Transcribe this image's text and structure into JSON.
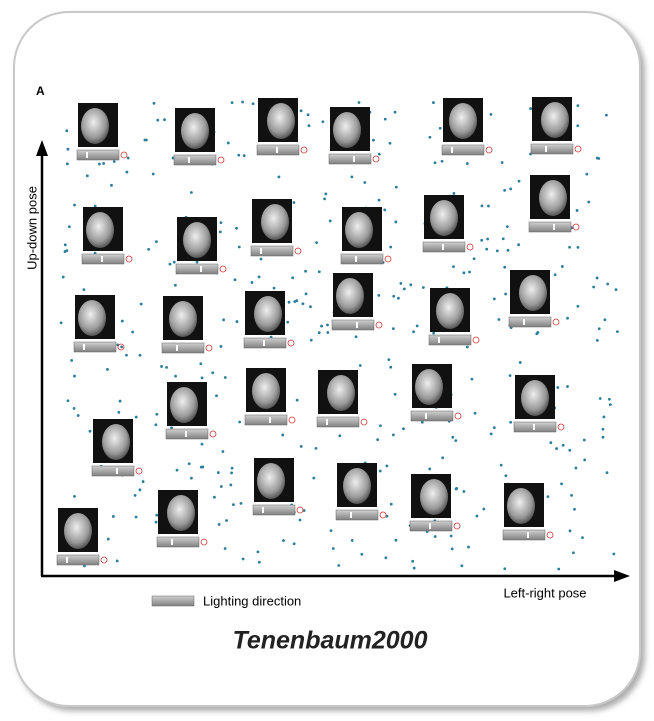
{
  "panel_label": "A",
  "y_axis_label": "Up-down pose",
  "x_axis_label": "Left-right pose",
  "legend": {
    "label": "Lighting direction"
  },
  "caption": "Tenenbaum2000"
}
